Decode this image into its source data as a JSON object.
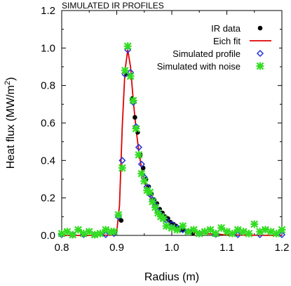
{
  "chart_data": {
    "type": "scatter",
    "title": "SIMULATED IR PROFILES",
    "xlabel": "Radius (m)",
    "ylabel_main": "Heat flux (MW/m",
    "ylabel_sup": "2",
    "ylabel_end": ")",
    "xlim": [
      0.8,
      1.2
    ],
    "ylim": [
      0.0,
      1.2
    ],
    "xticks": [
      0.8,
      0.9,
      1.0,
      1.1,
      1.2
    ],
    "xtick_labels": [
      "0.8",
      "0.9",
      "1.0",
      "1.1",
      "1.2"
    ],
    "yticks": [
      0.0,
      0.2,
      0.4,
      0.6,
      0.8,
      1.0,
      1.2
    ],
    "ytick_labels": [
      "0.0",
      "0.2",
      "0.4",
      "0.6",
      "0.8",
      "1.0",
      "1.2"
    ],
    "grid": false,
    "legend_position": "top-right",
    "series": [
      {
        "name": "IR data",
        "kind": "point",
        "color": "#000000",
        "x": [
          0.908,
          0.918,
          0.928,
          0.933,
          0.938,
          0.943,
          0.948,
          0.953,
          0.958,
          0.963,
          0.968,
          0.973,
          0.978,
          0.983,
          0.988,
          0.993,
          0.998,
          1.003,
          1.008,
          1.013,
          1.018,
          1.023,
          1.028,
          1.033,
          1.038
        ],
        "y": [
          0.08,
          0.86,
          0.73,
          0.63,
          0.55,
          0.43,
          0.36,
          0.3,
          0.26,
          0.22,
          0.19,
          0.17,
          0.14,
          0.12,
          0.1,
          0.09,
          0.07,
          0.06,
          0.05,
          0.04,
          0.03,
          0.03,
          0.02,
          0.02,
          0.01
        ]
      },
      {
        "name": "Eich fit",
        "kind": "line",
        "color": "#e00000",
        "x": [
          0.8,
          0.85,
          0.895,
          0.9,
          0.905,
          0.91,
          0.915,
          0.92,
          0.925,
          0.93,
          0.935,
          0.94,
          0.945,
          0.95,
          0.955,
          0.96,
          0.965,
          0.97,
          0.98,
          0.99,
          1.0,
          1.01,
          1.02,
          1.04,
          1.06,
          1.1,
          1.15,
          1.2
        ],
        "y": [
          0.0,
          0.0,
          0.002,
          0.02,
          0.16,
          0.58,
          0.88,
          0.99,
          0.9,
          0.72,
          0.57,
          0.45,
          0.36,
          0.3,
          0.25,
          0.21,
          0.18,
          0.155,
          0.115,
          0.085,
          0.06,
          0.045,
          0.033,
          0.018,
          0.01,
          0.003,
          0.001,
          0.0
        ]
      },
      {
        "name": "Simulated profile",
        "kind": "diamond",
        "color": "#2233dd",
        "x": [
          0.8,
          0.82,
          0.84,
          0.86,
          0.88,
          0.895,
          0.903,
          0.91,
          0.915,
          0.92,
          0.925,
          0.93,
          0.935,
          0.94,
          0.945,
          0.95,
          0.955,
          0.96,
          0.965,
          0.97,
          0.975,
          0.98,
          0.99,
          1.0,
          1.01,
          1.02,
          1.03,
          1.05,
          1.08,
          1.12,
          1.16,
          1.2
        ],
        "y": [
          0.0,
          0.0,
          0.0,
          0.0,
          0.0,
          0.01,
          0.1,
          0.4,
          0.86,
          0.99,
          0.87,
          0.71,
          0.58,
          0.47,
          0.38,
          0.31,
          0.26,
          0.22,
          0.19,
          0.16,
          0.13,
          0.11,
          0.08,
          0.06,
          0.04,
          0.03,
          0.02,
          0.01,
          0.005,
          0.0,
          0.0,
          0.0
        ]
      },
      {
        "name": "Simulated with noise",
        "kind": "star",
        "color": "#33dd22",
        "x": [
          0.8,
          0.81,
          0.82,
          0.83,
          0.84,
          0.85,
          0.86,
          0.87,
          0.88,
          0.89,
          0.895,
          0.903,
          0.91,
          0.915,
          0.92,
          0.925,
          0.93,
          0.935,
          0.94,
          0.945,
          0.95,
          0.955,
          0.96,
          0.965,
          0.97,
          0.975,
          0.98,
          0.985,
          0.99,
          1.0,
          1.01,
          1.02,
          1.03,
          1.04,
          1.05,
          1.06,
          1.07,
          1.08,
          1.09,
          1.1,
          1.11,
          1.12,
          1.13,
          1.14,
          1.15,
          1.16,
          1.17,
          1.18,
          1.19,
          1.2
        ],
        "y": [
          0.01,
          0.02,
          0.0,
          0.03,
          0.01,
          0.02,
          0.0,
          0.01,
          0.03,
          0.02,
          0.02,
          0.11,
          0.36,
          0.88,
          1.01,
          0.85,
          0.72,
          0.57,
          0.43,
          0.33,
          0.29,
          0.24,
          0.23,
          0.18,
          0.15,
          0.12,
          0.1,
          0.09,
          0.05,
          0.04,
          0.03,
          0.05,
          0.02,
          0.03,
          0.01,
          0.02,
          0.03,
          0.01,
          0.04,
          0.02,
          0.01,
          0.03,
          0.02,
          0.01,
          0.06,
          0.02,
          0.03,
          0.02,
          0.01,
          0.03
        ]
      }
    ]
  }
}
